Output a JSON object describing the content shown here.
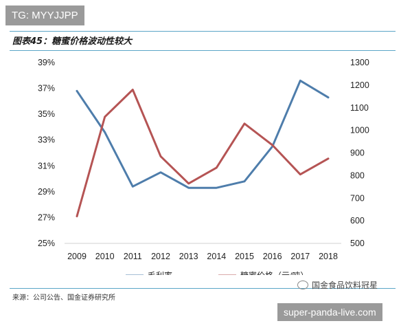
{
  "watermark_top": "TG: MYYJJPP",
  "title": "图表45：糖蜜价格波动性较大",
  "source": "来源：公司公告、国金证券研究所",
  "wechat_label": "国金食品饮料冠星",
  "watermark_bottom": "super-panda-live.com",
  "colors": {
    "rule": "#5aa5c7",
    "series_margin": "#4e7dab",
    "series_price": "#b55454"
  },
  "chart_data": {
    "type": "line",
    "categories": [
      "2009",
      "2010",
      "2011",
      "2012",
      "2013",
      "2014",
      "2015",
      "2016",
      "2017",
      "2018"
    ],
    "left_axis": {
      "ticks": [
        "25%",
        "27%",
        "29%",
        "31%",
        "33%",
        "35%",
        "37%",
        "39%"
      ],
      "ylim": [
        25,
        39
      ]
    },
    "right_axis": {
      "ticks": [
        "500",
        "600",
        "700",
        "800",
        "900",
        "1000",
        "1100",
        "1200",
        "1300"
      ],
      "ylim": [
        500,
        1300
      ]
    },
    "series": [
      {
        "name": "毛利率",
        "axis": "left",
        "values": [
          36.8,
          33.6,
          29.4,
          30.5,
          29.3,
          29.3,
          29.8,
          32.5,
          37.6,
          36.3
        ]
      },
      {
        "name": "糖蜜价格（元/吨）",
        "axis": "right",
        "values": [
          620,
          1060,
          1180,
          885,
          765,
          835,
          1030,
          935,
          805,
          875
        ]
      }
    ],
    "legend_position": "bottom",
    "grid": false
  }
}
